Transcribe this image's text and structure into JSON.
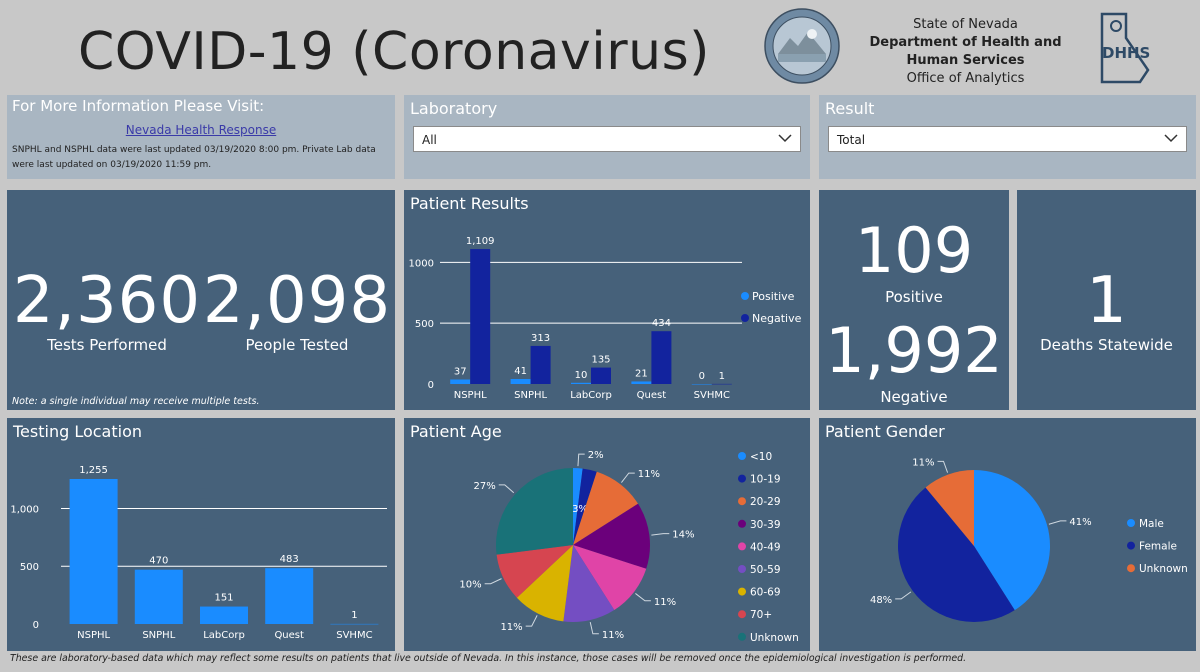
{
  "header": {
    "title": "COVID-19 (Coronavirus)",
    "org_line1": "State of Nevada",
    "org_line2": "Department of Health and",
    "org_line3": "Human Services",
    "org_line4": "Office of Analytics",
    "seal_icon": "nevada-state-seal",
    "logo_icon": "dhhs-logo"
  },
  "info": {
    "title": "For More Information Please Visit:",
    "link": "Nevada Health Response",
    "update_line1": "SNPHL and NSPHL data were last updated 03/19/2020 8:00 pm.  Private Lab data",
    "update_line2": "were last updated on 03/19/2020 11:59 pm."
  },
  "filters": {
    "laboratory_label": "Laboratory",
    "laboratory_value": "All",
    "result_label": "Result",
    "result_value": "Total"
  },
  "totals": {
    "tests_value": "2,360",
    "tests_label": "Tests Performed",
    "people_value": "2,098",
    "people_label": "People Tested",
    "note": "Note: a single individual may receive multiple tests."
  },
  "cards": {
    "positive_value": "109",
    "positive_label": "Positive",
    "negative_value": "1,992",
    "negative_label": "Negative",
    "deaths_value": "1",
    "deaths_label": "Deaths Statewide"
  },
  "panels": {
    "patient_results": "Patient Results",
    "testing_location": "Testing Location",
    "patient_age": "Patient Age",
    "patient_gender": "Patient Gender"
  },
  "footer": {
    "note": "These are laboratory-based data which may reflect some results on patients that live outside of Nevada. In this instance, those cases will be removed once the epidemiological investigation is performed."
  },
  "chart_data": [
    {
      "id": "patient_results",
      "type": "bar",
      "title": "Patient Results",
      "categories": [
        "NSPHL",
        "SNPHL",
        "LabCorp",
        "Quest",
        "SVHMC"
      ],
      "series": [
        {
          "name": "Positive",
          "values": [
            37,
            41,
            10,
            21,
            0
          ],
          "color": "#1a8cff"
        },
        {
          "name": "Negative",
          "values": [
            1109,
            313,
            135,
            434,
            1
          ],
          "color": "#12239e"
        }
      ],
      "y_ticks": [
        "0",
        "500",
        "1000"
      ],
      "ylim": [
        0,
        1200
      ],
      "legend": "right",
      "grid": true
    },
    {
      "id": "testing_location",
      "type": "bar",
      "title": "Testing Location",
      "categories": [
        "NSPHL",
        "SNPHL",
        "LabCorp",
        "Quest",
        "SVHMC"
      ],
      "series": [
        {
          "values": [
            1255,
            470,
            151,
            483,
            1
          ],
          "color": "#1a8cff"
        }
      ],
      "y_ticks": [
        "0",
        "500",
        "1,000"
      ],
      "ylim": [
        0,
        1350
      ],
      "grid": true
    },
    {
      "id": "patient_age",
      "type": "pie",
      "title": "Patient Age",
      "labels": [
        "<10",
        "10-19",
        "20-29",
        "30-39",
        "40-49",
        "50-59",
        "60-69",
        "70+",
        "Unknown"
      ],
      "values": [
        2,
        3,
        11,
        14,
        11,
        11,
        11,
        10,
        27
      ],
      "value_labels": [
        "2%",
        "3%",
        "11%",
        "14%",
        "11%",
        "11%",
        "11%",
        "10%",
        "27%"
      ],
      "colors": [
        "#1a8cff",
        "#12239e",
        "#e66c37",
        "#6b007b",
        "#e044a7",
        "#744ec2",
        "#d9b300",
        "#d64550",
        "#197278"
      ],
      "legend": "right"
    },
    {
      "id": "patient_gender",
      "type": "pie",
      "title": "Patient Gender",
      "labels": [
        "Male",
        "Female",
        "Unknown"
      ],
      "values": [
        41,
        48,
        11
      ],
      "value_labels": [
        "41%",
        "48%",
        "11%"
      ],
      "colors": [
        "#1a8cff",
        "#12239e",
        "#e66c37"
      ],
      "legend": "right"
    }
  ]
}
